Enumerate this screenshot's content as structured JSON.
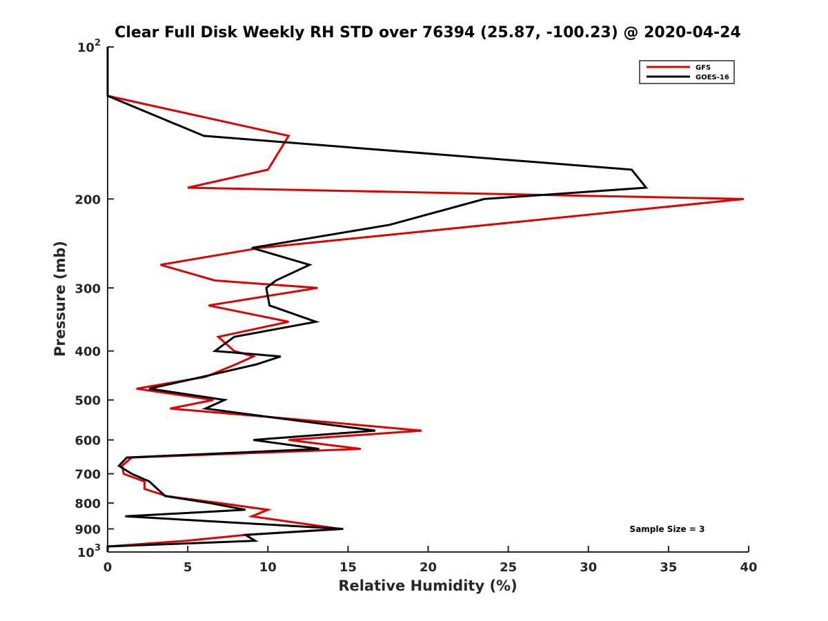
{
  "chart_data": {
    "type": "line",
    "title": "Clear Full Disk Weekly RH STD over 76394 (25.87, -100.23) @ 2020-04-24",
    "xlabel": "Relative Humidity (%)",
    "ylabel": "Pressure (mb)",
    "xlim": [
      0,
      40
    ],
    "ylim": [
      100,
      1000
    ],
    "yscale": "log",
    "y_reversed": true,
    "grid": false,
    "legend_position": "top-right",
    "x_ticks": [
      0,
      5,
      10,
      15,
      20,
      25,
      30,
      35,
      40
    ],
    "x_tick_labels": [
      "0",
      "5",
      "10",
      "15",
      "20",
      "25",
      "30",
      "35",
      "40"
    ],
    "y_ticks": [
      100,
      200,
      300,
      400,
      500,
      600,
      700,
      800,
      900,
      1000
    ],
    "y_tick_labels": [
      {
        "base": "10",
        "exp": "2"
      },
      {
        "base": "200",
        "exp": ""
      },
      {
        "base": "300",
        "exp": ""
      },
      {
        "base": "400",
        "exp": ""
      },
      {
        "base": "500",
        "exp": ""
      },
      {
        "base": "600",
        "exp": ""
      },
      {
        "base": "700",
        "exp": ""
      },
      {
        "base": "800",
        "exp": ""
      },
      {
        "base": "900",
        "exp": ""
      },
      {
        "base": "10",
        "exp": "3"
      }
    ],
    "annotation": "Sample Size = 3",
    "series": [
      {
        "name": "GFS",
        "color": "#e00000",
        "points": [
          [
            0,
            100
          ],
          [
            0,
            125
          ],
          [
            11.3,
            150
          ],
          [
            10.0,
            175
          ],
          [
            5.0,
            190
          ],
          [
            39.7,
            200
          ],
          [
            9.5,
            250
          ],
          [
            3.3,
            270
          ],
          [
            6.7,
            290
          ],
          [
            13.1,
            300
          ],
          [
            6.3,
            325
          ],
          [
            11.3,
            350
          ],
          [
            6.9,
            375
          ],
          [
            7.9,
            400
          ],
          [
            9.1,
            410
          ],
          [
            8.0,
            425
          ],
          [
            6.1,
            450
          ],
          [
            1.8,
            475
          ],
          [
            6.6,
            500
          ],
          [
            3.9,
            520
          ],
          [
            10.0,
            540
          ],
          [
            19.6,
            575
          ],
          [
            11.3,
            600
          ],
          [
            15.8,
            625
          ],
          [
            1.5,
            650
          ],
          [
            0.9,
            675
          ],
          [
            1.0,
            700
          ],
          [
            2.3,
            725
          ],
          [
            2.3,
            750
          ],
          [
            3.7,
            775
          ],
          [
            7.0,
            800
          ],
          [
            10.0,
            825
          ],
          [
            9.0,
            850
          ],
          [
            14.5,
            900
          ],
          [
            8.6,
            925
          ],
          [
            4.9,
            950
          ],
          [
            0,
            975
          ],
          [
            0,
            1000
          ]
        ]
      },
      {
        "name": "GOES-16",
        "color": "#000000",
        "points": [
          [
            0,
            100
          ],
          [
            0,
            125
          ],
          [
            6.0,
            150
          ],
          [
            32.7,
            175
          ],
          [
            33.6,
            190
          ],
          [
            23.5,
            200
          ],
          [
            17.6,
            225
          ],
          [
            9.0,
            250
          ],
          [
            12.6,
            270
          ],
          [
            10.5,
            290
          ],
          [
            9.9,
            300
          ],
          [
            10.1,
            325
          ],
          [
            13.0,
            350
          ],
          [
            7.9,
            375
          ],
          [
            6.7,
            400
          ],
          [
            10.8,
            410
          ],
          [
            9.3,
            425
          ],
          [
            5.9,
            450
          ],
          [
            2.6,
            475
          ],
          [
            7.3,
            500
          ],
          [
            6.1,
            520
          ],
          [
            10.0,
            540
          ],
          [
            16.7,
            575
          ],
          [
            9.1,
            600
          ],
          [
            13.2,
            625
          ],
          [
            1.2,
            650
          ],
          [
            0.7,
            675
          ],
          [
            1.5,
            700
          ],
          [
            2.6,
            725
          ],
          [
            3.1,
            750
          ],
          [
            3.6,
            775
          ],
          [
            6.4,
            800
          ],
          [
            8.6,
            825
          ],
          [
            1.1,
            850
          ],
          [
            14.7,
            900
          ],
          [
            8.6,
            925
          ],
          [
            9.2,
            950
          ],
          [
            0,
            975
          ],
          [
            0,
            1000
          ]
        ]
      }
    ]
  }
}
